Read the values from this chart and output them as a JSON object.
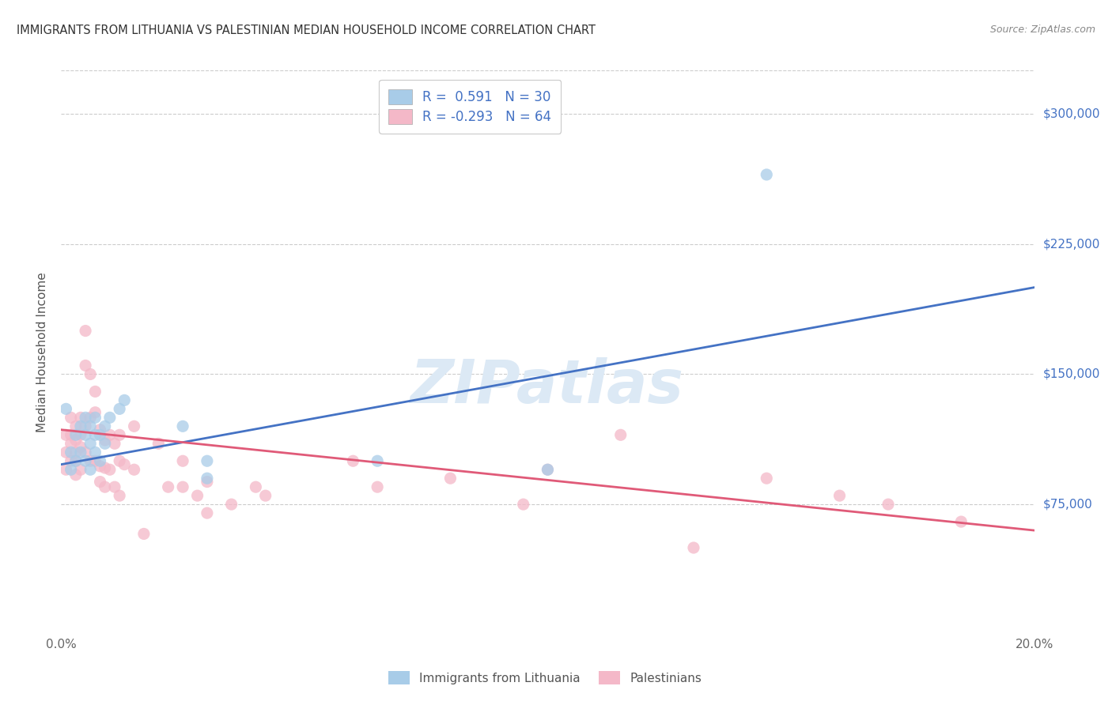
{
  "title": "IMMIGRANTS FROM LITHUANIA VS PALESTINIAN MEDIAN HOUSEHOLD INCOME CORRELATION CHART",
  "source": "Source: ZipAtlas.com",
  "ylabel": "Median Household Income",
  "x_min": 0.0,
  "x_max": 0.2,
  "y_min": 0,
  "y_max": 325000,
  "y_ticks": [
    75000,
    150000,
    225000,
    300000
  ],
  "y_tick_labels": [
    "$75,000",
    "$150,000",
    "$225,000",
    "$300,000"
  ],
  "x_ticks": [
    0.0,
    0.04,
    0.08,
    0.12,
    0.16,
    0.2
  ],
  "x_tick_labels": [
    "0.0%",
    "",
    "",
    "",
    "",
    "20.0%"
  ],
  "blue_color": "#a8cce8",
  "pink_color": "#f4b8c8",
  "blue_line_color": "#4472c4",
  "pink_line_color": "#e05a78",
  "right_tick_color": "#4472c4",
  "watermark": "ZIPatlas",
  "watermark_color": "#dce9f5",
  "blue_scatter_x": [
    0.001,
    0.002,
    0.002,
    0.003,
    0.003,
    0.004,
    0.004,
    0.005,
    0.005,
    0.005,
    0.006,
    0.006,
    0.006,
    0.007,
    0.007,
    0.007,
    0.008,
    0.008,
    0.009,
    0.009,
    0.01,
    0.012,
    0.013,
    0.025,
    0.03,
    0.03,
    0.065,
    0.1,
    0.145
  ],
  "blue_scatter_y": [
    130000,
    105000,
    95000,
    115000,
    100000,
    120000,
    105000,
    125000,
    115000,
    100000,
    120000,
    110000,
    95000,
    125000,
    115000,
    105000,
    115000,
    100000,
    120000,
    110000,
    125000,
    130000,
    135000,
    120000,
    100000,
    90000,
    100000,
    95000,
    265000
  ],
  "pink_scatter_x": [
    0.001,
    0.001,
    0.001,
    0.002,
    0.002,
    0.002,
    0.002,
    0.003,
    0.003,
    0.003,
    0.003,
    0.003,
    0.004,
    0.004,
    0.004,
    0.004,
    0.005,
    0.005,
    0.005,
    0.005,
    0.006,
    0.006,
    0.006,
    0.007,
    0.007,
    0.007,
    0.008,
    0.008,
    0.008,
    0.009,
    0.009,
    0.009,
    0.01,
    0.01,
    0.011,
    0.011,
    0.012,
    0.012,
    0.012,
    0.013,
    0.015,
    0.015,
    0.017,
    0.02,
    0.022,
    0.025,
    0.025,
    0.028,
    0.03,
    0.03,
    0.035,
    0.04,
    0.042,
    0.06,
    0.065,
    0.08,
    0.095,
    0.1,
    0.115,
    0.13,
    0.145,
    0.16,
    0.17,
    0.185
  ],
  "pink_scatter_y": [
    115000,
    105000,
    95000,
    125000,
    115000,
    110000,
    100000,
    120000,
    112000,
    105000,
    100000,
    92000,
    125000,
    115000,
    108000,
    95000,
    175000,
    155000,
    120000,
    105000,
    150000,
    125000,
    100000,
    140000,
    128000,
    100000,
    118000,
    97000,
    88000,
    112000,
    96000,
    85000,
    115000,
    95000,
    110000,
    85000,
    80000,
    115000,
    100000,
    98000,
    120000,
    95000,
    58000,
    110000,
    85000,
    100000,
    85000,
    80000,
    70000,
    88000,
    75000,
    85000,
    80000,
    100000,
    85000,
    90000,
    75000,
    95000,
    115000,
    50000,
    90000,
    80000,
    75000,
    65000
  ],
  "blue_trend_x": [
    0.0,
    0.2
  ],
  "blue_trend_y": [
    98000,
    200000
  ],
  "pink_trend_x": [
    0.0,
    0.2
  ],
  "pink_trend_y": [
    118000,
    60000
  ],
  "legend_x1_label": "Immigrants from Lithuania",
  "legend_x2_label": "Palestinians"
}
